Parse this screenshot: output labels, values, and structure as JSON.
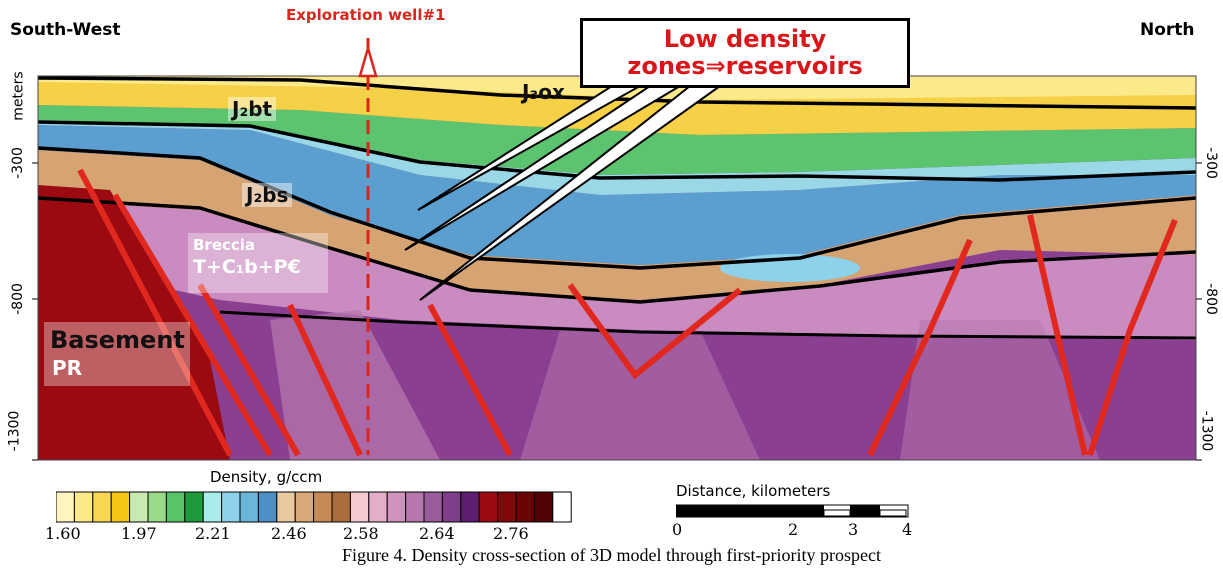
{
  "titles": {
    "left": "South-West",
    "right": "North",
    "well": "Exploration well#1",
    "callout_line1": "Low density",
    "callout_line2": "zones⇒reservoirs"
  },
  "layers": {
    "j3ox": "J₃ox",
    "j2bt": "J₂bt",
    "j2bs": "J₂bs",
    "breccia": "Breccia",
    "tcb": "T+C₁b+P€",
    "basement": "Basement",
    "pr": "PR"
  },
  "axis": {
    "unit": "meters",
    "left_ticks": [
      "-300",
      "-800",
      "-1300"
    ],
    "right_ticks": [
      "-300",
      "-800",
      "-1300"
    ]
  },
  "legend": {
    "title": "Density, g/ccm",
    "values": [
      "1.60",
      "1.97",
      "2.21",
      "2.46",
      "2.58",
      "2.64",
      "2.76"
    ],
    "colors": [
      "#fdf6c0",
      "#fbe98a",
      "#f7d750",
      "#f5c518",
      "#c8e9b0",
      "#98d98a",
      "#58c46a",
      "#1f9a3c",
      "#a8ecec",
      "#8dd1ea",
      "#6bb6d8",
      "#4b8fc4",
      "#e8c9a0",
      "#d9a878",
      "#c58a56",
      "#a96e3c",
      "#f6c8cf",
      "#e3aec8",
      "#cf93bd",
      "#b677ae",
      "#9b5c9d",
      "#7e3e8a",
      "#5e1d6f",
      "#9a0a10",
      "#800808",
      "#680404",
      "#520202",
      "#ffffff"
    ]
  },
  "scale": {
    "title": "Distance, kilometers",
    "ticks": [
      "0",
      "2",
      "3",
      "4"
    ]
  },
  "caption": "Figure 4.  Density cross-section of 3D model through first-priority prospect",
  "colors": {
    "accent_red": "#d9261c",
    "fault_red": "#e0281e"
  }
}
